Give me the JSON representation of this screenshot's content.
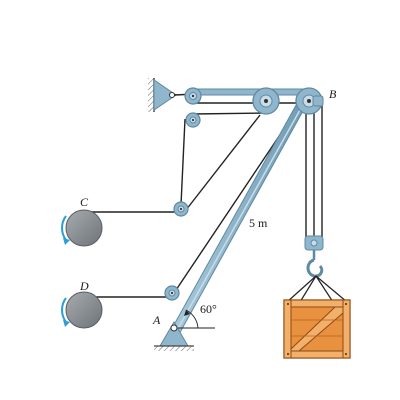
{
  "labels": {
    "point_b": "B",
    "point_c": "C",
    "point_d": "D",
    "point_a": "A",
    "boom_length": "5 m",
    "angle": "60°"
  },
  "colors": {
    "steel_blue": "#8fb6cc",
    "steel_blue_dark": "#5f8aa3",
    "steel_blue_light": "#c9dde8",
    "drum_gray": "#8f9498",
    "drum_gray_dark": "#6b7074",
    "rotation_arrow": "#2a9ed8",
    "crate_wood": "#e8913f",
    "crate_wood_dark": "#b8621e",
    "crate_wood_light": "#f3b06a",
    "rope": "#222222",
    "wall_hatch": "#555555"
  },
  "icons": {
    "drum_c": "winch-drum-icon",
    "drum_d": "winch-drum-icon",
    "crate": "wooden-crate-icon",
    "hook": "crane-hook-icon",
    "support_top": "wall-pin-support-icon",
    "support_a": "pin-support-icon"
  }
}
